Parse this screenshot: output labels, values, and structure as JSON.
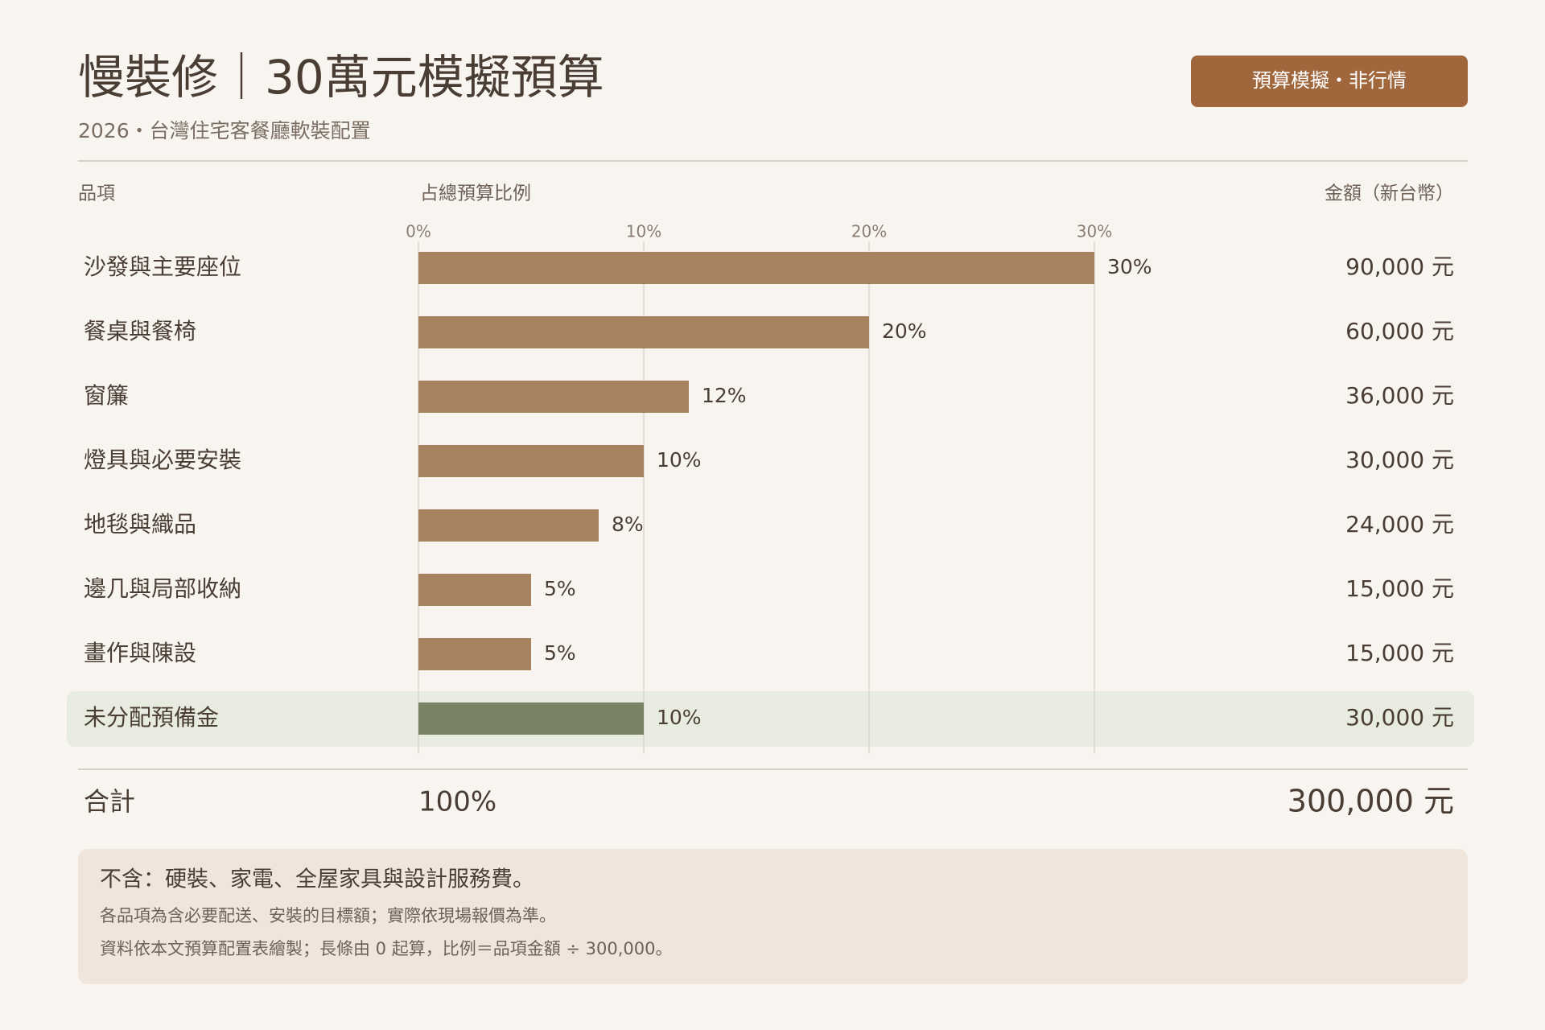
{
  "chart_data": {
    "type": "bar",
    "title": "慢裝修｜30萬元模擬預算",
    "badge": "預算模擬・非行情",
    "subtitle": "2026・台灣住宅客餐廳軟裝配置",
    "column_headers": [
      "品項",
      "占總預算比例",
      "金額（新台幣）"
    ],
    "categories": [
      "沙發與主要座位",
      "餐桌與餐椅",
      "窗簾",
      "燈具與必要安裝",
      "地毯與織品",
      "邊几與局部收納",
      "畫作與陳設",
      "未分配預備金"
    ],
    "values": [
      30,
      20,
      12,
      10,
      8,
      5,
      5,
      10
    ],
    "value_labels": [
      "30%",
      "20%",
      "12%",
      "10%",
      "8%",
      "5%",
      "5%",
      "10%"
    ],
    "amount_labels": [
      "90,000 元",
      "60,000 元",
      "36,000 元",
      "30,000 元",
      "24,000 元",
      "15,000 元",
      "15,000 元",
      "30,000 元"
    ],
    "colors": [
      "#a6825f",
      "#a6825f",
      "#a6825f",
      "#a6825f",
      "#a6825f",
      "#a6825f",
      "#a6825f",
      "#7a8266"
    ],
    "xlim": [
      0,
      30
    ],
    "xticks": [
      {
        "value": 0,
        "label": "0%"
      },
      {
        "value": 10,
        "label": "10%"
      },
      {
        "value": 20,
        "label": "20%"
      },
      {
        "value": 30,
        "label": "30%"
      }
    ],
    "grid": true,
    "total": {
      "label": "合計",
      "percent": "100%",
      "amount": "300,000 元"
    },
    "notes": [
      "不含：硬裝、家電、全屋家具與設計服務費。",
      "各品項為含必要配送、安裝的目標額；實際依現場報價為準。",
      "資料依本文預算配置表繪製；長條由 0 起算，比例＝品項金額 ÷ 300,000。"
    ]
  }
}
